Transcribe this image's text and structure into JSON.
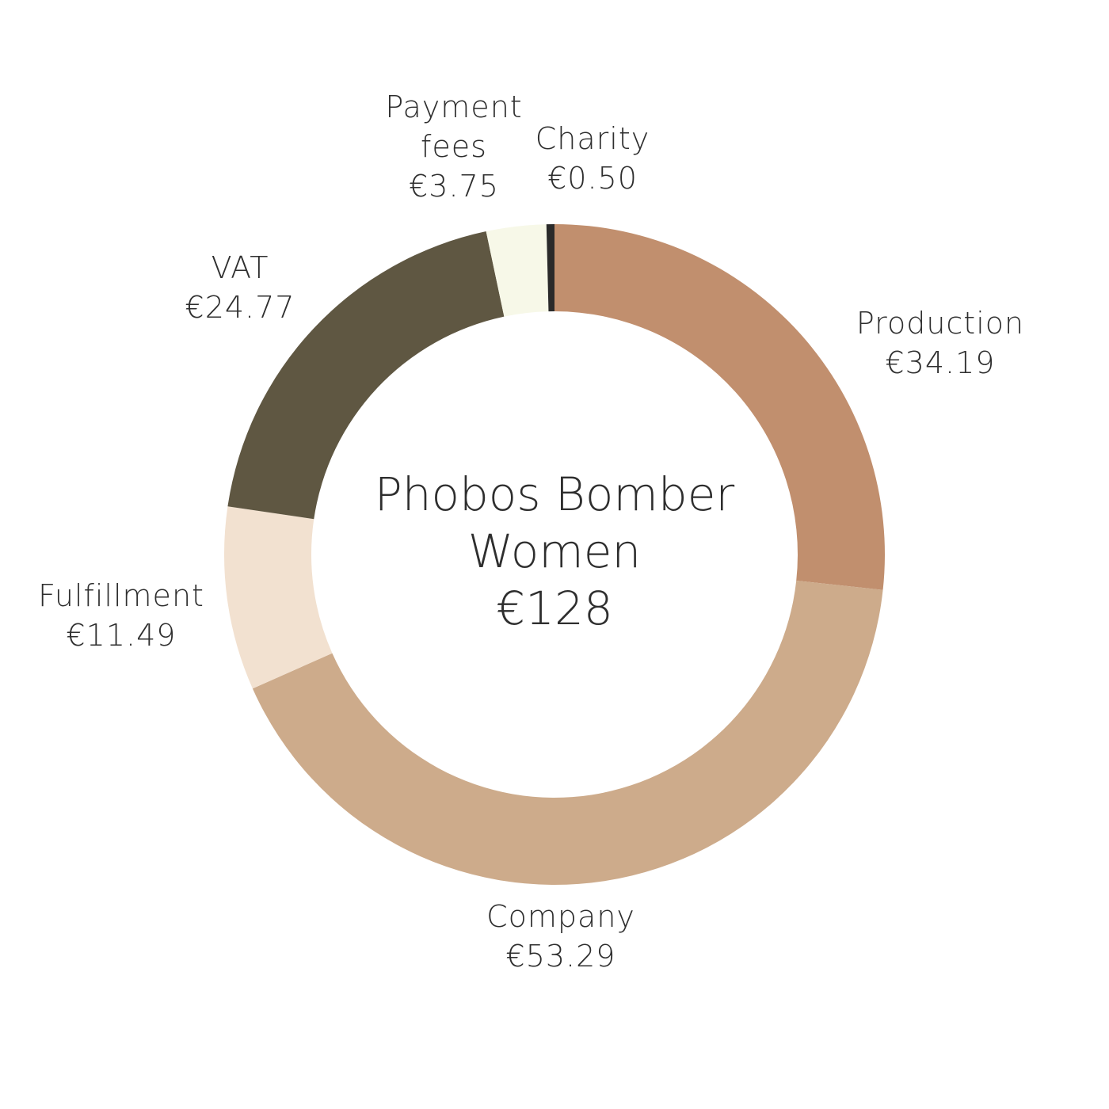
{
  "chart_data": {
    "type": "pie",
    "donut": true,
    "title": "Phobos Bomber Women",
    "total_label": "€128",
    "currency": "€",
    "start": "top",
    "direction": "clockwise",
    "slices": [
      {
        "name": "Production",
        "value": 34.19,
        "value_label": "€34.19",
        "color": "#c18f6e"
      },
      {
        "name": "Company",
        "value": 53.29,
        "value_label": "€53.29",
        "color": "#cdab8b"
      },
      {
        "name": "Fulfillment",
        "value": 11.49,
        "value_label": "€11.49",
        "color": "#f2e1d0"
      },
      {
        "name": "VAT",
        "value": 24.77,
        "value_label": "€24.77",
        "color": "#5f5742"
      },
      {
        "name": "Payment fees",
        "value": 3.75,
        "value_label": "€3.75",
        "color": "#f7f8e8"
      },
      {
        "name": "Charity",
        "value": 0.5,
        "value_label": "€0.50",
        "color": "#2a2a2a"
      }
    ]
  }
}
